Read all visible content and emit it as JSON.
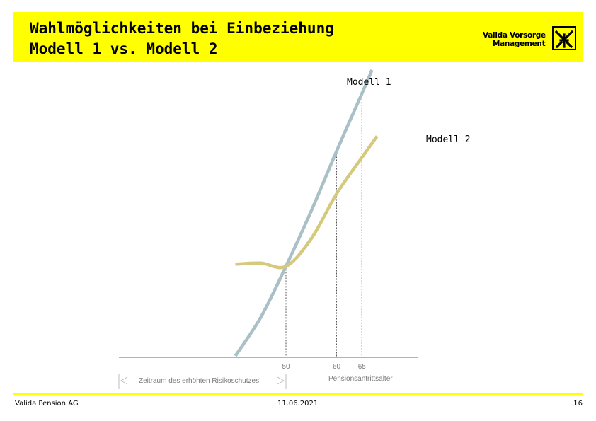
{
  "header": {
    "title_line1": "Wahlmöglichkeiten bei Einbeziehung",
    "title_line2": "Modell 1 vs. Modell 2",
    "logo_line1": "Valida Vorsorge",
    "logo_line2": "Management",
    "logo_icon": "raiffeisen-gable-cross-icon",
    "brand_color": "#ffff00"
  },
  "chart_data": {
    "type": "line",
    "x_ticks": [
      "50",
      "60",
      "65"
    ],
    "xlabel": "Pensionsantrittsalter",
    "range_annotation": "Zeitraum des erhöhten Risikoschutzes",
    "series": [
      {
        "name": "Modell 1",
        "color": "#a9c0c7",
        "x": [
          40,
          45,
          50,
          55,
          60,
          65,
          67
        ],
        "y": [
          0,
          0.18,
          0.42,
          0.68,
          0.96,
          1.23,
          1.34
        ]
      },
      {
        "name": "Modell 2",
        "color": "#d4c97c",
        "x": [
          40,
          45,
          50,
          55,
          60,
          65,
          68
        ],
        "y": [
          0.43,
          0.435,
          0.42,
          0.55,
          0.76,
          0.93,
          1.03
        ]
      }
    ]
  },
  "footer": {
    "left": "Valida Pension AG",
    "date": "11.06.2021",
    "page": "16"
  }
}
